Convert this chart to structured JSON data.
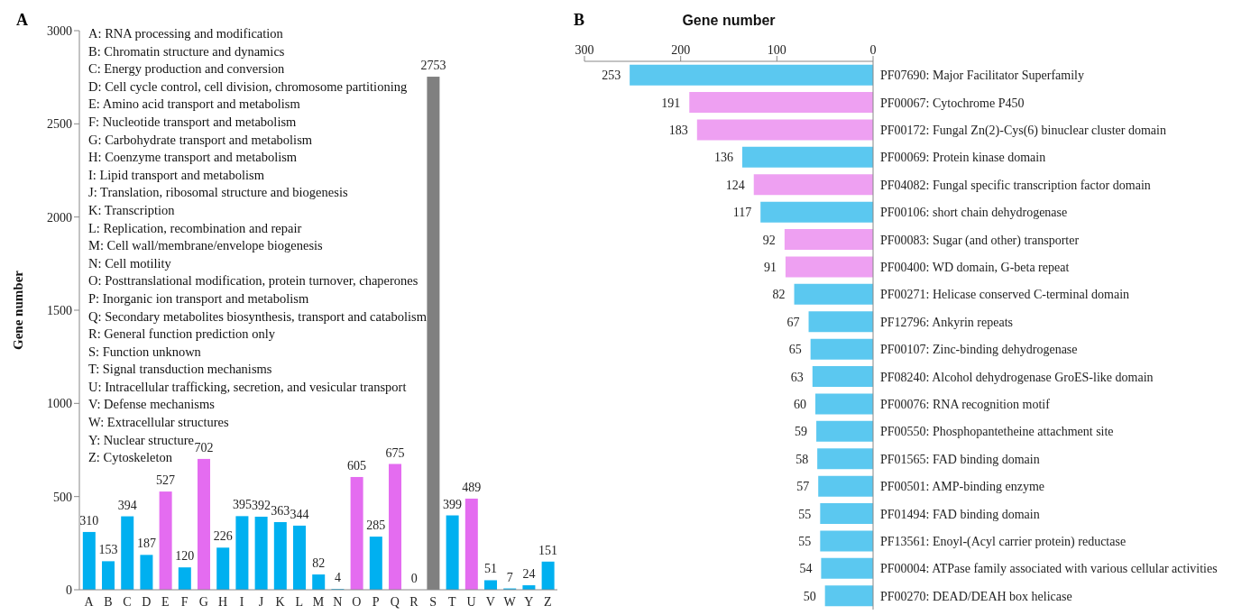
{
  "chart_data": [
    {
      "type": "bar",
      "title": "A",
      "ylabel": "Gene number",
      "categories": [
        "A",
        "B",
        "C",
        "D",
        "E",
        "F",
        "G",
        "H",
        "I",
        "J",
        "K",
        "L",
        "M",
        "N",
        "O",
        "P",
        "Q",
        "R",
        "S",
        "T",
        "U",
        "V",
        "W",
        "Y",
        "Z"
      ],
      "values": [
        310,
        153,
        394,
        187,
        527,
        120,
        702,
        226,
        395,
        392,
        363,
        344,
        82,
        4,
        605,
        285,
        675,
        0,
        2753,
        399,
        489,
        51,
        7,
        24,
        151
      ],
      "colors": [
        "#00b0f0",
        "#00b0f0",
        "#00b0f0",
        "#00b0f0",
        "#e46cf0",
        "#00b0f0",
        "#e46cf0",
        "#00b0f0",
        "#00b0f0",
        "#00b0f0",
        "#00b0f0",
        "#00b0f0",
        "#00b0f0",
        "#00b0f0",
        "#e46cf0",
        "#00b0f0",
        "#e46cf0",
        "#00b0f0",
        "#808080",
        "#00b0f0",
        "#e46cf0",
        "#00b0f0",
        "#00b0f0",
        "#00b0f0",
        "#00b0f0"
      ],
      "ylim": [
        0,
        3000
      ],
      "yticks": [
        0,
        500,
        1000,
        1500,
        2000,
        2500,
        3000
      ],
      "data_labels": true,
      "grid": false,
      "annotations": [
        "A: RNA processing and modification",
        "B: Chromatin structure and dynamics",
        "C: Energy production and conversion",
        "D: Cell cycle control, cell division, chromosome partitioning",
        "E: Amino acid transport and metabolism",
        "F: Nucleotide transport and metabolism",
        "G: Carbohydrate transport and metabolism",
        "H: Coenzyme transport and metabolism",
        "I: Lipid transport and metabolism",
        "J: Translation, ribosomal structure and biogenesis",
        "K: Transcription",
        "L: Replication, recombination and repair",
        "M: Cell wall/membrane/envelope biogenesis",
        "N: Cell motility",
        "O: Posttranslational modification, protein turnover, chaperones",
        "P: Inorganic ion transport and metabolism",
        "Q: Secondary metabolites biosynthesis, transport and catabolism",
        "R: General function prediction only",
        "S: Function unknown",
        "T: Signal transduction mechanisms",
        "U: Intracellular trafficking, secretion, and vesicular transport",
        "V: Defense mechanisms",
        "W: Extracellular structures",
        "Y: Nuclear structure",
        "Z: Cytoskeleton"
      ]
    },
    {
      "type": "bar",
      "title": "B",
      "xlabel": "Gene number",
      "orientation": "horizontal",
      "categories": [
        "PF07690: Major Facilitator Superfamily",
        "PF00067: Cytochrome P450",
        "PF00172: Fungal Zn(2)-Cys(6) binuclear cluster domain",
        "PF00069: Protein kinase domain",
        "PF04082: Fungal specific transcription factor domain",
        "PF00106: short chain dehydrogenase",
        "PF00083: Sugar (and other) transporter",
        "PF00400: WD domain, G-beta repeat",
        "PF00271: Helicase conserved C-terminal domain",
        "PF12796: Ankyrin repeats",
        "PF00107: Zinc-binding dehydrogenase",
        "PF08240: Alcohol dehydrogenase GroES-like domain",
        "PF00076: RNA recognition motif",
        "PF00550: Phosphopantetheine attachment site",
        "PF01565: FAD binding domain",
        "PF00501: AMP-binding enzyme",
        "PF01494: FAD binding domain",
        "PF13561: Enoyl-(Acyl carrier protein) reductase",
        "PF00004: ATPase family associated with various cellular activities",
        "PF00270: DEAD/DEAH box helicase"
      ],
      "values": [
        253,
        191,
        183,
        136,
        124,
        117,
        92,
        91,
        82,
        67,
        65,
        63,
        60,
        59,
        58,
        57,
        55,
        55,
        54,
        50
      ],
      "colors": [
        "#5bc8f0",
        "#eea0f2",
        "#eea0f2",
        "#5bc8f0",
        "#eea0f2",
        "#5bc8f0",
        "#eea0f2",
        "#eea0f2",
        "#5bc8f0",
        "#5bc8f0",
        "#5bc8f0",
        "#5bc8f0",
        "#5bc8f0",
        "#5bc8f0",
        "#5bc8f0",
        "#5bc8f0",
        "#5bc8f0",
        "#5bc8f0",
        "#5bc8f0",
        "#5bc8f0"
      ],
      "xlim": [
        300,
        0
      ],
      "xticks": [
        300,
        200,
        100,
        0
      ],
      "data_labels": true,
      "grid": false
    }
  ]
}
